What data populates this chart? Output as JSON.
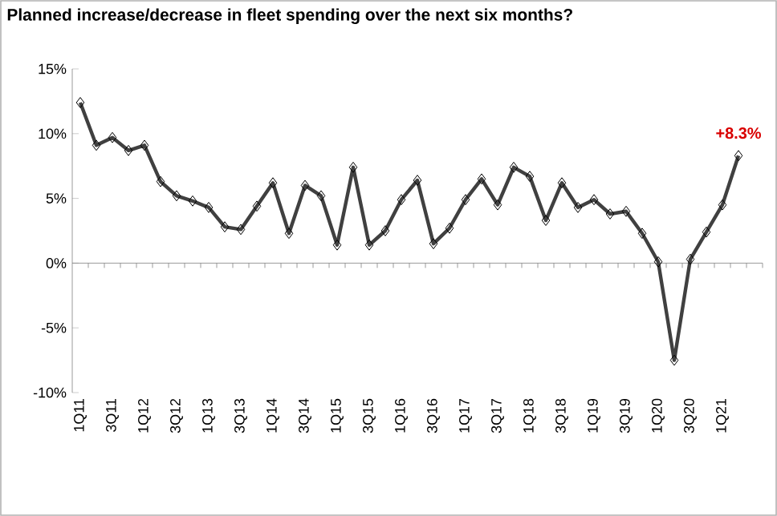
{
  "chart_data": {
    "type": "line",
    "title": "Planned increase/decrease in fleet spending over the next six months?",
    "categories": [
      "1Q11",
      null,
      "3Q11",
      null,
      "1Q12",
      null,
      "3Q12",
      null,
      "1Q13",
      null,
      "3Q13",
      null,
      "1Q14",
      null,
      "3Q14",
      null,
      "1Q15",
      null,
      "3Q15",
      null,
      "1Q16",
      null,
      "3Q16",
      null,
      "1Q17",
      null,
      "3Q17",
      null,
      "1Q18",
      null,
      "3Q18",
      null,
      "1Q19",
      null,
      "3Q19",
      null,
      "1Q20",
      null,
      "3Q20",
      null,
      "1Q21",
      null
    ],
    "values": [
      12.4,
      9.1,
      9.7,
      8.7,
      9.1,
      6.3,
      5.2,
      4.8,
      4.3,
      2.8,
      2.6,
      4.4,
      6.2,
      2.3,
      6.0,
      5.2,
      1.4,
      7.4,
      1.4,
      2.5,
      4.9,
      6.4,
      1.5,
      2.7,
      4.9,
      6.5,
      4.5,
      7.4,
      6.7,
      3.3,
      6.2,
      4.3,
      4.9,
      3.8,
      4.0,
      2.3,
      0.1,
      -7.5,
      0.3,
      2.4,
      4.5,
      8.3
    ],
    "color": "#404040",
    "marker": "diamond",
    "grid": false,
    "ylim": [
      -10,
      15
    ],
    "yticks": [
      {
        "value": -10,
        "label": "-10%"
      },
      {
        "value": -5,
        "label": "-5%"
      },
      {
        "value": 0,
        "label": "0%"
      },
      {
        "value": 5,
        "label": "5%"
      },
      {
        "value": 10,
        "label": "10%"
      },
      {
        "value": 15,
        "label": "15%"
      }
    ],
    "ref_lines": [
      {
        "axis": "y",
        "value": 0,
        "color": "#808080"
      }
    ],
    "annotations": [
      {
        "text": "+8.3%",
        "y": 8.3
      }
    ]
  }
}
